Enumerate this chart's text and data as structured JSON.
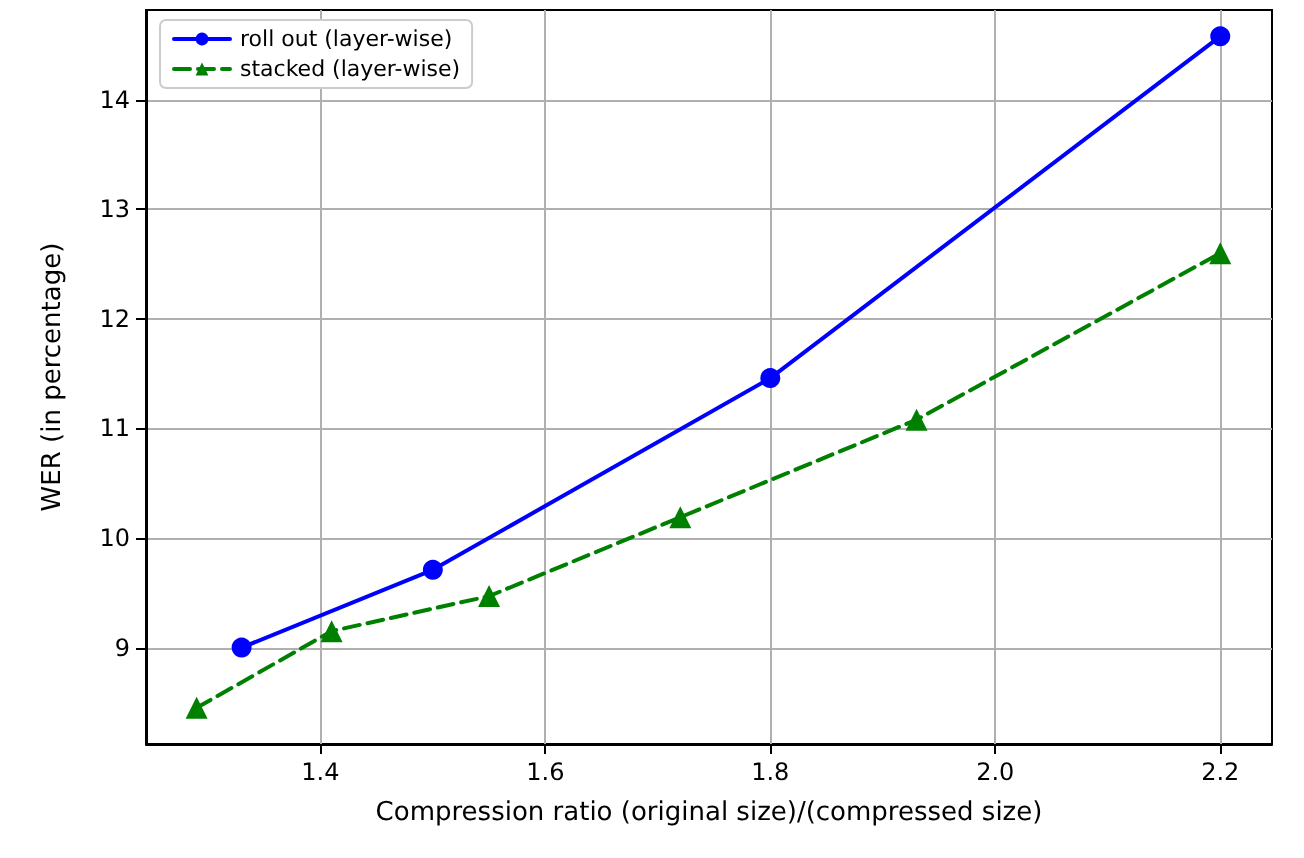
{
  "chart_data": {
    "type": "line",
    "xlabel": "Compression ratio (original size)/(compressed size)",
    "ylabel": "WER (in percentage)",
    "series": [
      {
        "name": "roll out (layer-wise)",
        "color": "#0000ff",
        "x": [
          1.33,
          1.5,
          1.8,
          2.2
        ],
        "values": [
          9.0,
          9.71,
          11.46,
          14.58
        ],
        "marker": "circle",
        "line_style": "solid"
      },
      {
        "name": "stacked (layer-wise)",
        "color": "#008000",
        "x": [
          1.29,
          1.41,
          1.55,
          1.72,
          1.93,
          2.2
        ],
        "values": [
          8.45,
          9.15,
          9.47,
          10.19,
          11.08,
          12.6
        ],
        "marker": "triangle",
        "line_style": "dashed"
      }
    ],
    "xlim": [
      1.245,
      2.246
    ],
    "xticks": [
      1.4,
      1.6,
      1.8,
      {
        "value": 2,
        "label": "2.0"
      },
      2.2
    ],
    "ylim": [
      8.12,
      14.82
    ],
    "yticks": [
      9,
      10,
      11,
      12,
      13,
      14
    ],
    "grid": true,
    "legend": "top left"
  }
}
